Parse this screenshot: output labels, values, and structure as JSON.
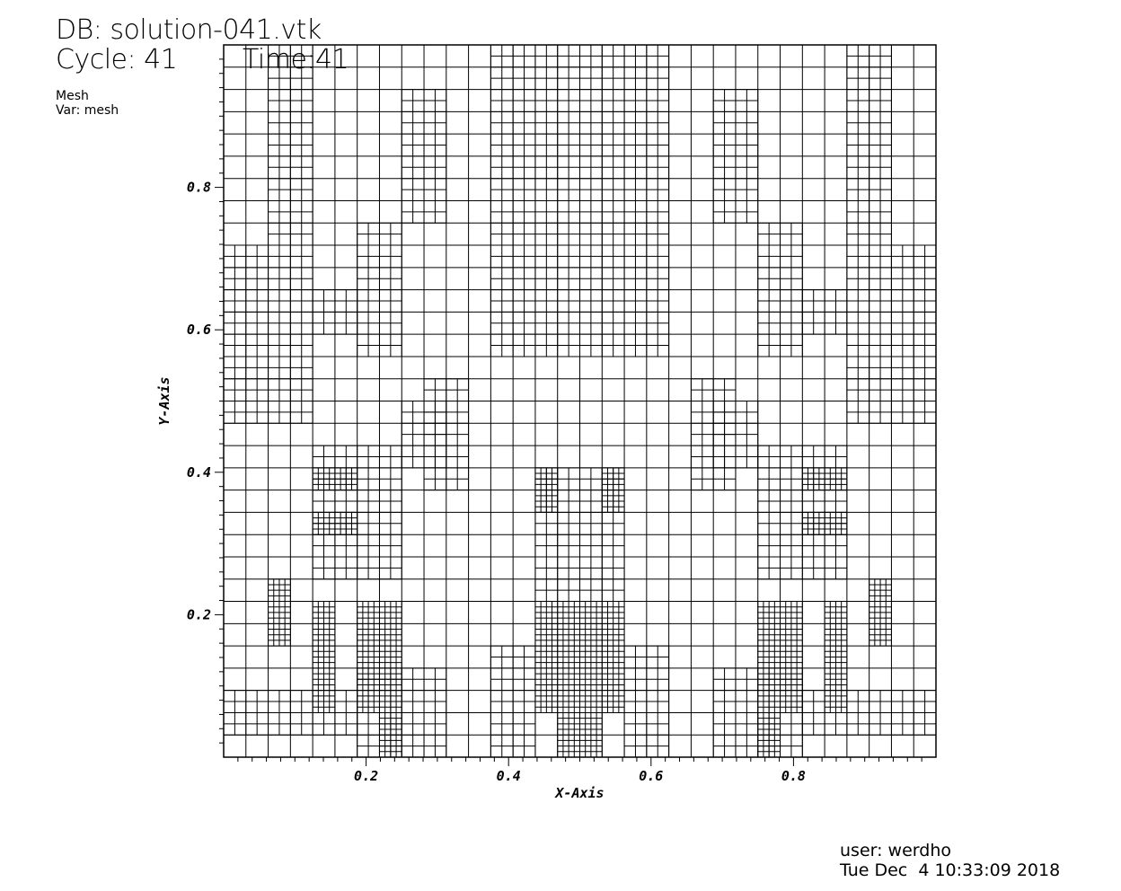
{
  "header": {
    "db_line": "DB: solution-041.vtk",
    "cycle_line": "Cycle: 41",
    "time_line": "Time:41",
    "plot_type": "Mesh",
    "var_line": "Var: mesh"
  },
  "footer": {
    "user_line": "user: werdho",
    "date_line": "Tue Dec  4 10:33:09 2018"
  },
  "chart_data": {
    "type": "mesh",
    "xlabel": "X-Axis",
    "ylabel": "Y-Axis",
    "xlim": [
      0,
      1
    ],
    "ylim": [
      0,
      1
    ],
    "x_ticks": [
      "0.2",
      "0.4",
      "0.6",
      "0.8"
    ],
    "y_ticks": [
      "0.2",
      "0.4",
      "0.6",
      "0.8"
    ],
    "x_tick_values": [
      0.2,
      0.4,
      0.6,
      0.8
    ],
    "y_tick_values": [
      0.2,
      0.4,
      0.6,
      0.8
    ],
    "base_level": 5,
    "refined_regions": [
      {
        "level": 6,
        "x": [
          0.0,
          0.0625
        ],
        "y": [
          0.46875,
          0.71875
        ]
      },
      {
        "level": 6,
        "x": [
          0.0625,
          0.125
        ],
        "y": [
          0.46875,
          1.0
        ]
      },
      {
        "level": 6,
        "x": [
          0.125,
          0.25
        ],
        "y": [
          0.25,
          0.4375
        ]
      },
      {
        "level": 6,
        "x": [
          0.1875,
          0.3125
        ],
        "y": [
          0.0,
          0.125
        ]
      },
      {
        "level": 6,
        "x": [
          0.125,
          0.1875
        ],
        "y": [
          0.59375,
          0.65625
        ]
      },
      {
        "level": 6,
        "x": [
          0.1875,
          0.25
        ],
        "y": [
          0.5625,
          0.75
        ]
      },
      {
        "level": 6,
        "x": [
          0.25,
          0.3125
        ],
        "y": [
          0.40625,
          0.5
        ]
      },
      {
        "level": 6,
        "x": [
          0.25,
          0.3125
        ],
        "y": [
          0.75,
          0.9375
        ]
      },
      {
        "level": 6,
        "x": [
          0.375,
          0.625
        ],
        "y": [
          0.5625,
          1.0
        ]
      },
      {
        "level": 6,
        "x": [
          0.375,
          0.4375
        ],
        "y": [
          0.0,
          0.15625
        ]
      },
      {
        "level": 6,
        "x": [
          0.4375,
          0.5625
        ],
        "y": [
          0.21875,
          0.40625
        ]
      },
      {
        "level": 6,
        "x": [
          0.5625,
          0.625
        ],
        "y": [
          0.0,
          0.15625
        ]
      },
      {
        "level": 6,
        "x": [
          0.6875,
          0.75
        ],
        "y": [
          0.40625,
          0.5
        ]
      },
      {
        "level": 6,
        "x": [
          0.6875,
          0.75
        ],
        "y": [
          0.75,
          0.9375
        ]
      },
      {
        "level": 6,
        "x": [
          0.75,
          0.8125
        ],
        "y": [
          0.5625,
          0.75
        ]
      },
      {
        "level": 6,
        "x": [
          0.75,
          0.875
        ],
        "y": [
          0.25,
          0.4375
        ]
      },
      {
        "level": 6,
        "x": [
          0.6875,
          0.8125
        ],
        "y": [
          0.0,
          0.125
        ]
      },
      {
        "level": 6,
        "x": [
          0.8125,
          0.875
        ],
        "y": [
          0.59375,
          0.65625
        ]
      },
      {
        "level": 6,
        "x": [
          0.875,
          0.9375
        ],
        "y": [
          0.46875,
          1.0
        ]
      },
      {
        "level": 6,
        "x": [
          0.9375,
          1.0
        ],
        "y": [
          0.46875,
          0.71875
        ]
      },
      {
        "level": 6,
        "x": [
          0.0,
          0.1875
        ],
        "y": [
          0.03125,
          0.09375
        ]
      },
      {
        "level": 6,
        "x": [
          0.8125,
          1.0
        ],
        "y": [
          0.03125,
          0.09375
        ]
      },
      {
        "level": 6,
        "x": [
          0.28125,
          0.34375
        ],
        "y": [
          0.375,
          0.53125
        ]
      },
      {
        "level": 6,
        "x": [
          0.65625,
          0.71875
        ],
        "y": [
          0.375,
          0.53125
        ]
      },
      {
        "level": 7,
        "x": [
          0.125,
          0.15625
        ],
        "y": [
          0.0625,
          0.21875
        ]
      },
      {
        "level": 7,
        "x": [
          0.0625,
          0.09375
        ],
        "y": [
          0.15625,
          0.25
        ]
      },
      {
        "level": 7,
        "x": [
          0.1875,
          0.25
        ],
        "y": [
          0.0625,
          0.21875
        ]
      },
      {
        "level": 7,
        "x": [
          0.21875,
          0.25
        ],
        "y": [
          0.0,
          0.0625
        ]
      },
      {
        "level": 7,
        "x": [
          0.125,
          0.1875
        ],
        "y": [
          0.3125,
          0.34375
        ]
      },
      {
        "level": 7,
        "x": [
          0.125,
          0.1875
        ],
        "y": [
          0.375,
          0.40625
        ]
      },
      {
        "level": 7,
        "x": [
          0.4375,
          0.5625
        ],
        "y": [
          0.0625,
          0.21875
        ]
      },
      {
        "level": 7,
        "x": [
          0.46875,
          0.53125
        ],
        "y": [
          0.0,
          0.0625
        ]
      },
      {
        "level": 7,
        "x": [
          0.4375,
          0.46875
        ],
        "y": [
          0.34375,
          0.40625
        ]
      },
      {
        "level": 7,
        "x": [
          0.53125,
          0.5625
        ],
        "y": [
          0.34375,
          0.40625
        ]
      },
      {
        "level": 7,
        "x": [
          0.75,
          0.8125
        ],
        "y": [
          0.0625,
          0.21875
        ]
      },
      {
        "level": 7,
        "x": [
          0.75,
          0.78125
        ],
        "y": [
          0.0,
          0.0625
        ]
      },
      {
        "level": 7,
        "x": [
          0.84375,
          0.875
        ],
        "y": [
          0.0625,
          0.21875
        ]
      },
      {
        "level": 7,
        "x": [
          0.90625,
          0.9375
        ],
        "y": [
          0.15625,
          0.25
        ]
      },
      {
        "level": 7,
        "x": [
          0.8125,
          0.875
        ],
        "y": [
          0.3125,
          0.34375
        ]
      },
      {
        "level": 7,
        "x": [
          0.8125,
          0.875
        ],
        "y": [
          0.375,
          0.40625
        ]
      }
    ]
  }
}
